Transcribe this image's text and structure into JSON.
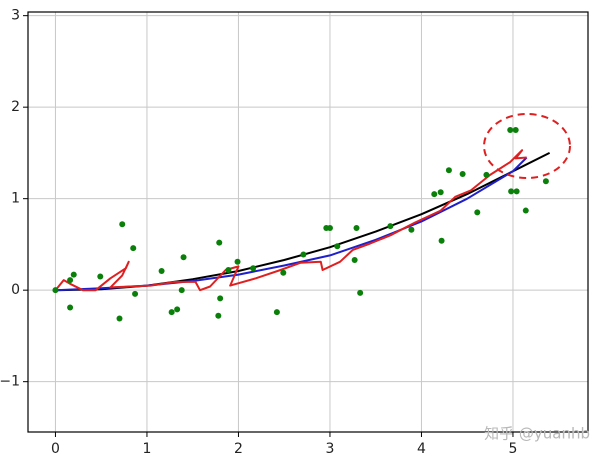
{
  "chart_data": {
    "type": "scatter",
    "xlim": [
      -0.3,
      5.82
    ],
    "ylim": [
      -1.55,
      3.04
    ],
    "xticks": [
      0,
      1,
      2,
      3,
      4,
      5
    ],
    "yticks": [
      {
        "value": -1,
        "label": "−1"
      },
      0,
      1,
      2,
      3
    ],
    "grid": true,
    "watermark": "知乎 @yuanhb",
    "series": [
      {
        "type": "line",
        "color": "#000000",
        "x": [
          0,
          0.5,
          1,
          1.5,
          2,
          2.5,
          3,
          3.5,
          4,
          4.5,
          5,
          5.4
        ],
        "values": [
          0,
          0.01,
          0.05,
          0.12,
          0.21,
          0.33,
          0.47,
          0.64,
          0.83,
          1.05,
          1.3,
          1.5
        ]
      },
      {
        "type": "line",
        "color": "#1f1fcc",
        "x": [
          0,
          0.5,
          1,
          1.5,
          2,
          2.5,
          3,
          3.5,
          4,
          4.5,
          5,
          5.15
        ],
        "values": [
          0,
          0.02,
          0.05,
          0.1,
          0.17,
          0.27,
          0.38,
          0.55,
          0.75,
          1.0,
          1.3,
          1.45
        ]
      },
      {
        "type": "line",
        "color": "#e02020",
        "x": [
          0,
          0.09,
          0.16,
          0.3,
          0.44,
          0.6,
          0.77,
          0.8,
          0.73,
          0.6,
          1.04,
          1.31,
          1.53,
          1.58,
          1.69,
          1.86,
          2.0,
          1.91,
          2.19,
          2.46,
          2.68,
          2.9,
          2.92,
          3.11,
          3.25,
          3.44,
          3.66,
          3.93,
          4.21,
          4.37,
          4.54,
          4.75,
          4.97,
          5.1,
          5.03,
          5.15
        ],
        "values": [
          0,
          0.11,
          0.07,
          0,
          0,
          0.13,
          0.24,
          0.31,
          0.16,
          0.03,
          0.05,
          0.09,
          0.09,
          0,
          0.04,
          0.22,
          0.26,
          0.05,
          0.13,
          0.22,
          0.3,
          0.31,
          0.22,
          0.31,
          0.44,
          0.51,
          0.6,
          0.74,
          0.87,
          1.02,
          1.09,
          1.26,
          1.4,
          1.53,
          1.44,
          1.45
        ]
      },
      {
        "type": "scatter",
        "color": "#0a800a",
        "x": [
          0,
          0.16,
          0.2,
          0.16,
          0.49,
          0.73,
          0.7,
          0.85,
          0.87,
          1.16,
          1.27,
          1.33,
          1.4,
          1.38,
          1.79,
          1.8,
          1.78,
          1.89,
          1.99,
          2.16,
          2.42,
          2.49,
          2.71,
          2.96,
          3.0,
          3.08,
          3.27,
          3.29,
          3.33,
          3.66,
          3.89,
          4.14,
          4.21,
          4.22,
          4.3,
          4.45,
          4.61,
          4.71,
          4.97,
          5.03,
          4.98,
          5.04,
          5.14,
          5.36
        ],
        "values": [
          0,
          0.11,
          0.17,
          -0.19,
          0.15,
          0.72,
          -0.31,
          0.46,
          -0.04,
          0.21,
          -0.24,
          -0.21,
          0.36,
          0,
          0.52,
          -0.09,
          -0.28,
          0.22,
          0.31,
          0.24,
          -0.24,
          0.19,
          0.39,
          0.68,
          0.68,
          0.48,
          0.33,
          0.68,
          -0.03,
          0.7,
          0.66,
          1.05,
          1.07,
          0.54,
          1.31,
          1.27,
          0.85,
          1.26,
          1.75,
          1.75,
          1.08,
          1.08,
          0.87,
          1.19
        ]
      }
    ]
  }
}
